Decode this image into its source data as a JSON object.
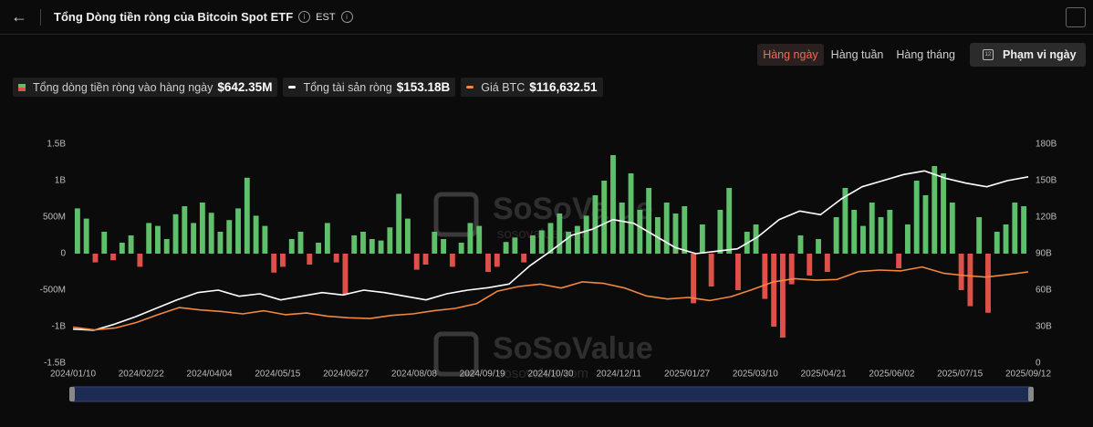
{
  "header": {
    "title": "Tổng Dòng tiền ròng của Bitcoin Spot ETF",
    "timezone": "EST"
  },
  "controls": {
    "tabs": [
      "Hàng ngày",
      "Hàng tuần",
      "Hàng tháng"
    ],
    "active_tab": 0,
    "date_range": "Phạm vi ngày",
    "calendar_day": "12"
  },
  "chart_data": {
    "type": "combo",
    "watermark": "SoSoValue",
    "watermark_url": "sosovalue.com",
    "xticks": [
      "2024/01/10",
      "2024/02/22",
      "2024/04/04",
      "2024/05/15",
      "2024/06/27",
      "2024/08/08",
      "2024/09/19",
      "2024/10/30",
      "2024/12/11",
      "2025/01/27",
      "2025/03/10",
      "2025/04/21",
      "2025/06/02",
      "2025/07/15",
      "2025/09/12"
    ],
    "ylim": [
      -1500,
      1500
    ],
    "yticks": [
      {
        "value": -1500,
        "label": "-1.5B"
      },
      {
        "value": -1000,
        "label": "-1B"
      },
      {
        "value": -500,
        "label": "-500M"
      },
      0,
      {
        "value": 500,
        "label": "500M"
      },
      {
        "value": 1000,
        "label": "1B"
      },
      {
        "value": 1500,
        "label": "1.5B"
      }
    ],
    "y2lim": [
      0,
      180
    ],
    "y2ticks": [
      0,
      {
        "value": 30,
        "label": "30B"
      },
      {
        "value": 60,
        "label": "60B"
      },
      {
        "value": 90,
        "label": "90B"
      },
      {
        "value": 120,
        "label": "120B"
      },
      {
        "value": 150,
        "label": "150B"
      },
      {
        "value": 180,
        "label": "180B"
      }
    ],
    "y3lim": [
      0,
      280000
    ],
    "series": [
      {
        "name": "Tổng dòng tiền ròng vào hàng ngày",
        "type": "bar",
        "current": "$642.35M",
        "color": "#5fbf6a",
        "down_color": "#e0504a",
        "values": [
          620,
          480,
          -120,
          300,
          -90,
          150,
          250,
          -180,
          420,
          380,
          200,
          540,
          650,
          420,
          700,
          560,
          300,
          460,
          620,
          1040,
          520,
          380,
          -260,
          -180,
          200,
          300,
          -150,
          150,
          420,
          -120,
          -560,
          250,
          300,
          200,
          180,
          360,
          820,
          480,
          -220,
          -150,
          300,
          200,
          -180,
          150,
          420,
          380,
          -250,
          -180,
          160,
          220,
          -120,
          250,
          320,
          420,
          550,
          300,
          380,
          520,
          800,
          1000,
          1350,
          700,
          1100,
          600,
          900,
          500,
          700,
          550,
          650,
          -680,
          400,
          -450,
          600,
          900,
          -500,
          300,
          400,
          -620,
          -1000,
          -1150,
          -420,
          250,
          -300,
          200,
          -250,
          500,
          900,
          600,
          380,
          700,
          500,
          600,
          -200,
          400,
          1000,
          800,
          1200,
          1100,
          700,
          -500,
          -720,
          500,
          -810,
          300,
          400,
          700,
          650
        ]
      },
      {
        "name": "Tổng tài sản ròng",
        "type": "line",
        "axis": "y2",
        "current": "$153.18B",
        "color": "#ffffff",
        "values": [
          28,
          27,
          32,
          38,
          45,
          52,
          58,
          60,
          55,
          57,
          52,
          55,
          58,
          56,
          60,
          58,
          55,
          52,
          57,
          60,
          62,
          65,
          80,
          92,
          105,
          110,
          118,
          115,
          105,
          95,
          90,
          92,
          94,
          104,
          118,
          125,
          122,
          135,
          145,
          150,
          155,
          158,
          152,
          148,
          145,
          150,
          153.18
        ]
      },
      {
        "name": "Giá BTC",
        "type": "line",
        "axis": "y3",
        "current": "$116,632.51",
        "color": "#f0883e",
        "values": [
          46000,
          42500,
          45000,
          52000,
          62000,
          71000,
          68000,
          66000,
          63000,
          67000,
          62000,
          64000,
          60000,
          58000,
          57000,
          61000,
          63000,
          67000,
          70000,
          76000,
          92000,
          98000,
          101000,
          96000,
          104000,
          102000,
          96000,
          86000,
          82000,
          84000,
          80000,
          85000,
          94000,
          104000,
          108000,
          106000,
          107000,
          117000,
          119000,
          118000,
          123000,
          115000,
          112000,
          110000,
          113000,
          116632.51
        ]
      }
    ]
  }
}
